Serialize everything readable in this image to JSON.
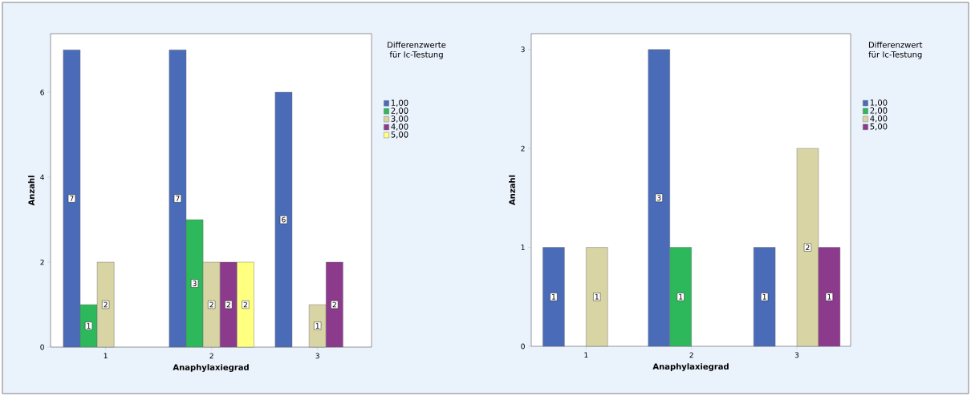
{
  "chart_data": [
    {
      "type": "bar",
      "xlabel": "Anaphylaxiegrad",
      "ylabel": "Anzahl",
      "legend_title": "Differenzwerte für Ic-Testung",
      "categories": [
        "1",
        "2",
        "3"
      ],
      "ylim": [
        0,
        7.38
      ],
      "yticks": [
        0,
        2,
        4,
        6
      ],
      "legend": "right",
      "data_labels": true,
      "series": [
        {
          "name": "1,00",
          "color": "#4a6cb8",
          "values": [
            7,
            7,
            6
          ]
        },
        {
          "name": "2,00",
          "color": "#2eb85c",
          "values": [
            1,
            3,
            null
          ]
        },
        {
          "name": "3,00",
          "color": "#d8d4a4",
          "values": [
            2,
            2,
            1
          ]
        },
        {
          "name": "4,00",
          "color": "#8c3b8c",
          "values": [
            null,
            2,
            2
          ]
        },
        {
          "name": "5,00",
          "color": "#ffff80",
          "values": [
            null,
            2,
            null
          ]
        }
      ]
    },
    {
      "type": "bar",
      "xlabel": "Anaphylaxiegrad",
      "ylabel": "Anzahl",
      "legend_title": "Differenzwert für Ic-Testung",
      "categories": [
        "1",
        "2",
        "3"
      ],
      "ylim": [
        0,
        3.16
      ],
      "yticks": [
        0,
        1,
        2,
        3
      ],
      "legend": "right",
      "data_labels": true,
      "series": [
        {
          "name": "1,00",
          "color": "#4a6cb8",
          "values": [
            1,
            3,
            1
          ]
        },
        {
          "name": "2,00",
          "color": "#2eb85c",
          "values": [
            null,
            1,
            null
          ]
        },
        {
          "name": "4,00",
          "color": "#d8d4a4",
          "values": [
            1,
            null,
            2
          ]
        },
        {
          "name": "5,00",
          "color": "#8c3b8c",
          "values": [
            null,
            null,
            1
          ]
        }
      ]
    }
  ]
}
